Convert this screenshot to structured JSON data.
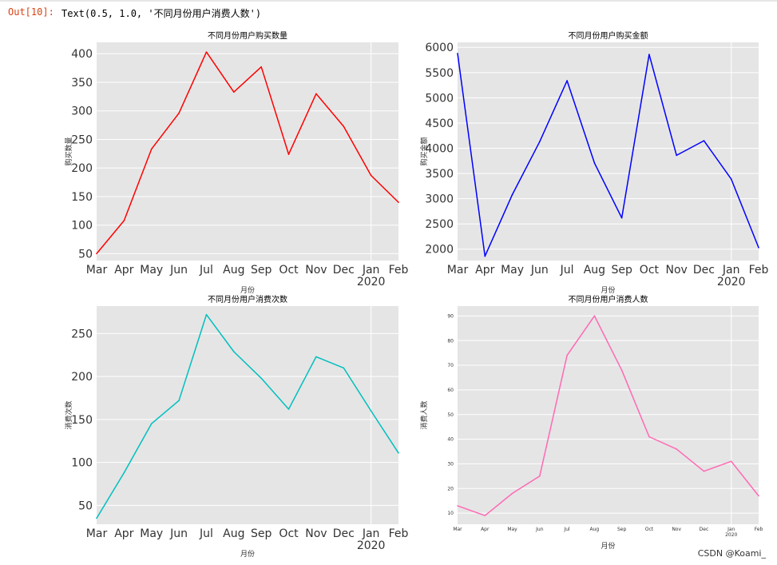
{
  "cell": {
    "prompt": "Out[10]:",
    "text": "Text(0.5, 1.0, '不同月份用户消费人数')"
  },
  "watermark": "CSDN @Koami_",
  "chart_data": [
    {
      "type": "line",
      "title": "不同月份用户购买数量",
      "xlabel": "月份",
      "ylabel": "购买数量",
      "categories": [
        "Mar",
        "Apr",
        "May",
        "Jun",
        "Jul",
        "Aug",
        "Sep",
        "Oct",
        "Nov",
        "Dec",
        "Jan",
        "Feb"
      ],
      "year_label": "2020",
      "yticks": [
        50,
        100,
        150,
        200,
        250,
        300,
        350,
        400
      ],
      "ylim": [
        38,
        420
      ],
      "series": [
        {
          "values": [
            50,
            108,
            233,
            296,
            403,
            333,
            377,
            224,
            330,
            273,
            187,
            140
          ],
          "color": "#ff0000"
        }
      ],
      "grid": true
    },
    {
      "type": "line",
      "title": "不同月份用户购买金额",
      "xlabel": "月份",
      "ylabel": "购买金额",
      "categories": [
        "Mar",
        "Apr",
        "May",
        "Jun",
        "Jul",
        "Aug",
        "Sep",
        "Oct",
        "Nov",
        "Dec",
        "Jan",
        "Feb"
      ],
      "year_label": "2020",
      "yticks": [
        2000,
        2500,
        3000,
        3500,
        4000,
        4500,
        5000,
        5500,
        6000
      ],
      "ylim": [
        1775,
        6100
      ],
      "series": [
        {
          "values": [
            5880,
            1860,
            3080,
            4130,
            5340,
            3710,
            2620,
            5860,
            3860,
            4150,
            3390,
            2030
          ],
          "color": "#0000ff"
        }
      ],
      "grid": true
    },
    {
      "type": "line",
      "title": "不同月份用户消费次数",
      "xlabel": "月份",
      "ylabel": "消费次数",
      "categories": [
        "Mar",
        "Apr",
        "May",
        "Jun",
        "Jul",
        "Aug",
        "Sep",
        "Oct",
        "Nov",
        "Dec",
        "Jan",
        "Feb"
      ],
      "year_label": "2020",
      "yticks": [
        50,
        100,
        150,
        200,
        250
      ],
      "ylim": [
        28,
        282
      ],
      "series": [
        {
          "values": [
            35,
            88,
            145,
            172,
            272,
            229,
            198,
            162,
            223,
            210,
            160,
            111
          ],
          "color": "#00bfbf"
        }
      ],
      "grid": true
    },
    {
      "type": "line",
      "title": "不同月份用户消费人数",
      "xlabel": "月份",
      "ylabel": "消费人数",
      "categories": [
        "Mar",
        "Apr",
        "May",
        "Jun",
        "Jul",
        "Aug",
        "Sep",
        "Oct",
        "Nov",
        "Dec",
        "Jan",
        "Feb"
      ],
      "year_label": "2020",
      "yticks": [
        10,
        20,
        30,
        40,
        50,
        60,
        70,
        80,
        90
      ],
      "ylim": [
        5.5,
        94
      ],
      "series": [
        {
          "values": [
            13,
            9,
            18,
            25,
            74,
            90,
            68,
            41,
            36,
            27,
            31,
            17
          ],
          "color": "#ff69b4"
        }
      ],
      "grid": true
    }
  ]
}
